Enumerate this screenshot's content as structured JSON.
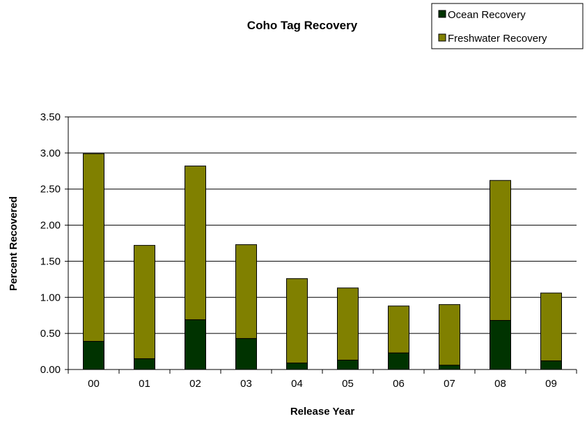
{
  "chart_data": {
    "type": "bar",
    "stacked": true,
    "title": "Coho Tag Recovery",
    "xlabel": "Release Year",
    "ylabel": "Percent Recovered",
    "categories": [
      "00",
      "01",
      "02",
      "03",
      "04",
      "05",
      "06",
      "07",
      "08",
      "09"
    ],
    "ylim": [
      0,
      3.5
    ],
    "yticks": [
      "0.00",
      "0.50",
      "1.00",
      "1.50",
      "2.00",
      "2.50",
      "3.00",
      "3.50"
    ],
    "grid": true,
    "legend_position": "top-right",
    "series": [
      {
        "name": "Ocean Recovery",
        "color": "#003300",
        "values": [
          0.39,
          0.15,
          0.69,
          0.43,
          0.09,
          0.13,
          0.23,
          0.06,
          0.68,
          0.12
        ]
      },
      {
        "name": "Freshwater Recovery",
        "color": "#808000",
        "values": [
          2.6,
          1.57,
          2.13,
          1.3,
          1.17,
          1.0,
          0.65,
          0.84,
          1.94,
          0.94
        ]
      }
    ]
  }
}
